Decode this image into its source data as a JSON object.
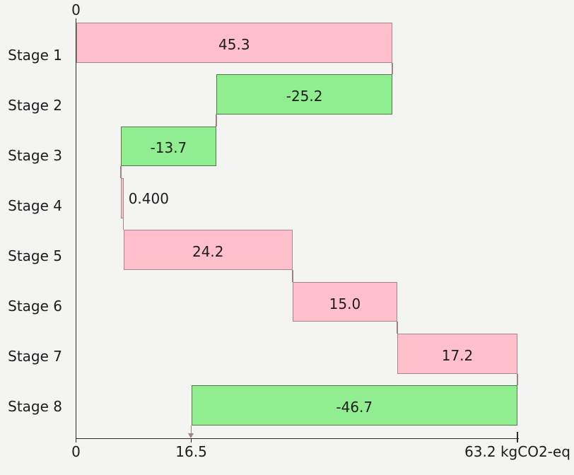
{
  "chart_data": {
    "type": "bar",
    "subtype": "waterfall",
    "orientation": "horizontal",
    "categories": [
      "Stage 1",
      "Stage 2",
      "Stage 3",
      "Stage 4",
      "Stage 5",
      "Stage 6",
      "Stage 7",
      "Stage 8"
    ],
    "values": [
      45.3,
      -25.2,
      -13.7,
      0.4,
      24.2,
      15.0,
      17.2,
      -46.7
    ],
    "value_labels": [
      "45.3",
      "-25.2",
      "-13.7",
      "0.400",
      "24.2",
      "15.0",
      "17.2",
      "-46.7"
    ],
    "cumulative_ends": [
      45.3,
      20.1,
      6.4,
      6.8,
      31.0,
      46.0,
      63.2,
      16.5
    ],
    "total": 16.5,
    "xlim": [
      0,
      63.2
    ],
    "grid": "off",
    "legend": "none",
    "x_axis": {
      "top_origin_label": "0",
      "unit": "kgCO2-eq",
      "ticks": [
        {
          "value": 0,
          "label": "0"
        },
        {
          "value": 16.5,
          "label": "16.5"
        },
        {
          "value": 63.2,
          "label": "63.2 kgCO2-eq"
        }
      ]
    },
    "colors": {
      "positive_fill": "#ffc0cb",
      "positive_border": "#a6878c",
      "negative_fill": "#90ee90",
      "negative_border": "#557d46",
      "connector": "#9b8488",
      "axis": "#2b2b2b",
      "text": "#1c1c1c",
      "background": "#f4f4f3"
    }
  }
}
